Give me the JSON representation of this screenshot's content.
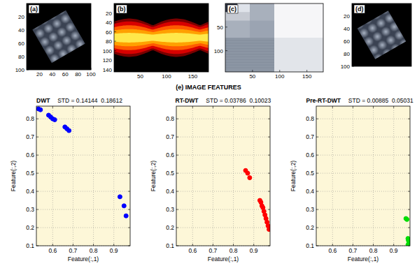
{
  "title": "(e) IMAGE FEATURES",
  "chart_data": [
    {
      "type": "image",
      "label": "(a)",
      "xlim": [
        0,
        100
      ],
      "ylim": [
        0,
        100
      ],
      "xticks": [
        20,
        40,
        60,
        80,
        100
      ],
      "yticks": [
        20,
        40,
        60,
        80,
        100
      ]
    },
    {
      "type": "image",
      "label": "(b)",
      "xlim": [
        0,
        180
      ],
      "ylim": [
        0,
        145
      ],
      "xticks": [
        50,
        100,
        150
      ],
      "yticks": [
        20,
        40,
        60,
        80,
        100,
        120,
        140
      ]
    },
    {
      "type": "image",
      "label": "(c)",
      "xlim": [
        0,
        180
      ],
      "ylim": [
        0,
        145
      ],
      "xticks": [
        50,
        100,
        150
      ],
      "yticks": [
        50,
        100
      ]
    },
    {
      "type": "image",
      "label": "(d)",
      "xlim": [
        0,
        100
      ],
      "ylim": [
        0,
        100
      ],
      "yticks": [
        20,
        40,
        60,
        80,
        100
      ],
      "tick_labels": "y"
    },
    {
      "type": "scatter",
      "title": "DWT",
      "subtitle": "STD = 0.14144  0.18612",
      "x_label": "Feature(:,1)",
      "y_label": "Feature(:,2)",
      "xlim": [
        0.52,
        0.98
      ],
      "ylim": [
        0.1,
        0.87
      ],
      "xticks": [
        0.6,
        0.7,
        0.8,
        0.9
      ],
      "yticks": [
        0.1,
        0.2,
        0.3,
        0.4,
        0.5,
        0.6,
        0.7,
        0.8
      ],
      "grid": true,
      "color": "#0000ff",
      "marker": "circle",
      "x": [
        0.53,
        0.54,
        0.58,
        0.59,
        0.6,
        0.61,
        0.66,
        0.67,
        0.68,
        0.93,
        0.95,
        0.96
      ],
      "values": [
        0.855,
        0.85,
        0.82,
        0.81,
        0.8,
        0.795,
        0.755,
        0.745,
        0.735,
        0.37,
        0.32,
        0.265
      ]
    },
    {
      "type": "scatter",
      "title": "RT-DWT",
      "subtitle": "STD = 0.03786  0.10023",
      "x_label": "Feature(:,1)",
      "y_label": "Feature(:,2)",
      "xlim": [
        0.52,
        0.98
      ],
      "ylim": [
        0.1,
        0.87
      ],
      "xticks": [
        0.6,
        0.7,
        0.8,
        0.9
      ],
      "yticks": [
        0.1,
        0.2,
        0.3,
        0.4,
        0.5,
        0.6,
        0.7,
        0.8
      ],
      "grid": true,
      "color": "#ff0000",
      "marker": "circle",
      "x": [
        0.86,
        0.87,
        0.88,
        0.93,
        0.935,
        0.94,
        0.945,
        0.95,
        0.955,
        0.96,
        0.965,
        0.97,
        0.975
      ],
      "values": [
        0.515,
        0.5,
        0.475,
        0.35,
        0.34,
        0.32,
        0.31,
        0.29,
        0.27,
        0.25,
        0.23,
        0.21,
        0.19
      ]
    },
    {
      "type": "scatter",
      "title": "Pre-RT-DWT",
      "subtitle": "STD = 0.00885  0.05031",
      "x_label": "Feature(:,1)",
      "y_label": "Feature(:,2)",
      "xlim": [
        0.52,
        0.98
      ],
      "ylim": [
        0.1,
        0.87
      ],
      "xticks": [
        0.6,
        0.7,
        0.8,
        0.9
      ],
      "yticks": [
        0.1,
        0.2,
        0.3,
        0.4,
        0.5,
        0.6,
        0.7,
        0.8
      ],
      "grid": true,
      "color": "#00dd00",
      "marker": "circle",
      "x": [
        0.96,
        0.965,
        0.97,
        0.972,
        0.975,
        0.976,
        0.973,
        0.97
      ],
      "values": [
        0.25,
        0.245,
        0.14,
        0.13,
        0.12,
        0.11,
        0.1,
        0.105
      ]
    }
  ]
}
